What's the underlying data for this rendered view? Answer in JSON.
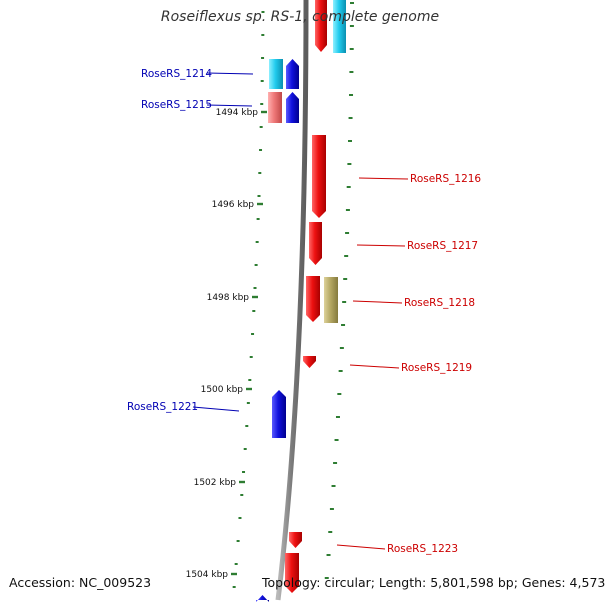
{
  "header": {
    "title": "Roseiflexus sp. RS-1, complete genome"
  },
  "footer": {
    "accession": "Accession: NC_009523",
    "summary": "Topology: circular; Length: 5,801,598 bp; Genes: 4,573"
  },
  "colors": {
    "backbone": "#808080",
    "ruler_dash": "#2e7d32",
    "label_forward": "#cc0000",
    "label_reverse": "#0000b3",
    "gene_red": "#ee1111",
    "gene_blue": "#1111dd",
    "gene_cyan": "#22ccee",
    "gene_pink": "#ee7777",
    "gene_khaki": "#b5a864"
  },
  "kbp_ticks": [
    {
      "label": "1494 kbp"
    },
    {
      "label": "1496 kbp"
    },
    {
      "label": "1498 kbp"
    },
    {
      "label": "1500 kbp"
    },
    {
      "label": "1502 kbp"
    },
    {
      "label": "1504 kbp"
    }
  ],
  "gene_labels": [
    {
      "label": "RoseRS_1214",
      "strand": "reverse"
    },
    {
      "label": "RoseRS_1215",
      "strand": "reverse"
    },
    {
      "label": "RoseRS_1216",
      "strand": "forward"
    },
    {
      "label": "RoseRS_1217",
      "strand": "forward"
    },
    {
      "label": "RoseRS_1218",
      "strand": "forward"
    },
    {
      "label": "RoseRS_1219",
      "strand": "forward"
    },
    {
      "label": "RoseRS_1221",
      "strand": "reverse"
    },
    {
      "label": "RoseRS_1223",
      "strand": "forward"
    }
  ]
}
